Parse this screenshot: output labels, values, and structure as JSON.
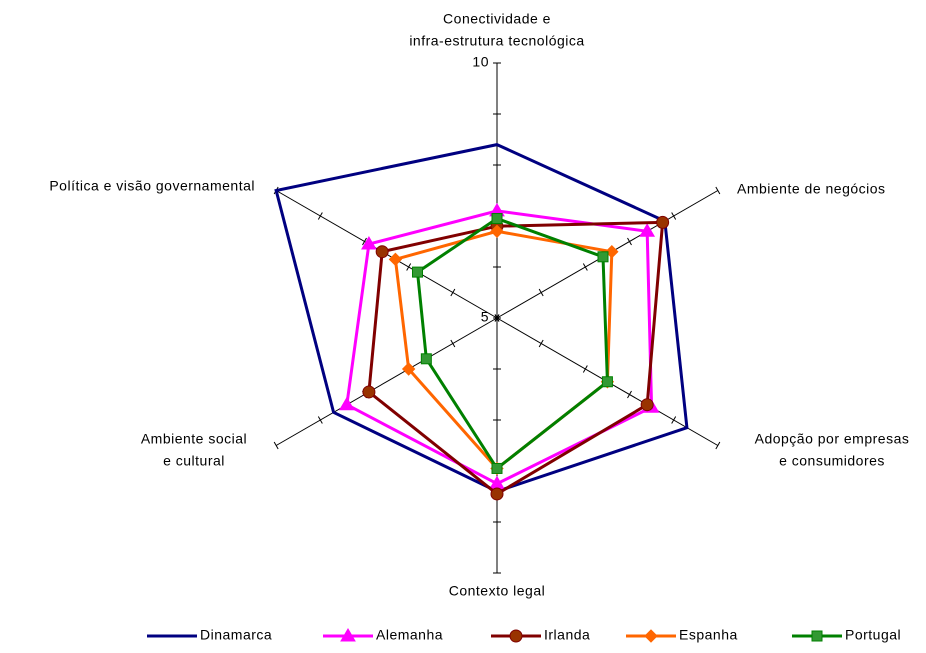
{
  "chart_data": {
    "type": "radar",
    "categories": [
      [
        "Conectividade e",
        "infra-estrutura tecnológica"
      ],
      [
        "Ambiente de negócios"
      ],
      [
        "Adopção por empresas",
        "e consumidores"
      ],
      [
        "Contexto legal"
      ],
      [
        "Ambiente social",
        "e cultural"
      ],
      [
        "Política e visão governamental"
      ]
    ],
    "rlim": [
      5,
      10
    ],
    "rticks": [
      5,
      10
    ],
    "rminor": [
      6,
      7,
      8,
      9
    ],
    "legend": "bottom",
    "series": [
      {
        "name": "Dinamarca",
        "color": "#000080",
        "marker": "none",
        "values": [
          8.4,
          8.8,
          9.3,
          8.4,
          8.7,
          10.0
        ]
      },
      {
        "name": "Alemanha",
        "color": "#ff00ff",
        "marker": "triangle",
        "values": [
          7.1,
          8.4,
          8.5,
          8.25,
          8.4,
          7.9
        ]
      },
      {
        "name": "Irlanda",
        "color": "#800000",
        "marker": "circle",
        "marker_color": "#993300",
        "values": [
          6.8,
          8.75,
          8.4,
          8.45,
          7.9,
          7.6
        ]
      },
      {
        "name": "Espanha",
        "color": "#ff6600",
        "marker": "diamond",
        "values": [
          6.7,
          7.6,
          7.5,
          7.95,
          7.0,
          7.3
        ]
      },
      {
        "name": "Portugal",
        "color": "#008000",
        "marker": "square",
        "marker_color": "#339933",
        "values": [
          6.95,
          7.4,
          7.5,
          7.95,
          6.6,
          6.8
        ]
      }
    ]
  }
}
